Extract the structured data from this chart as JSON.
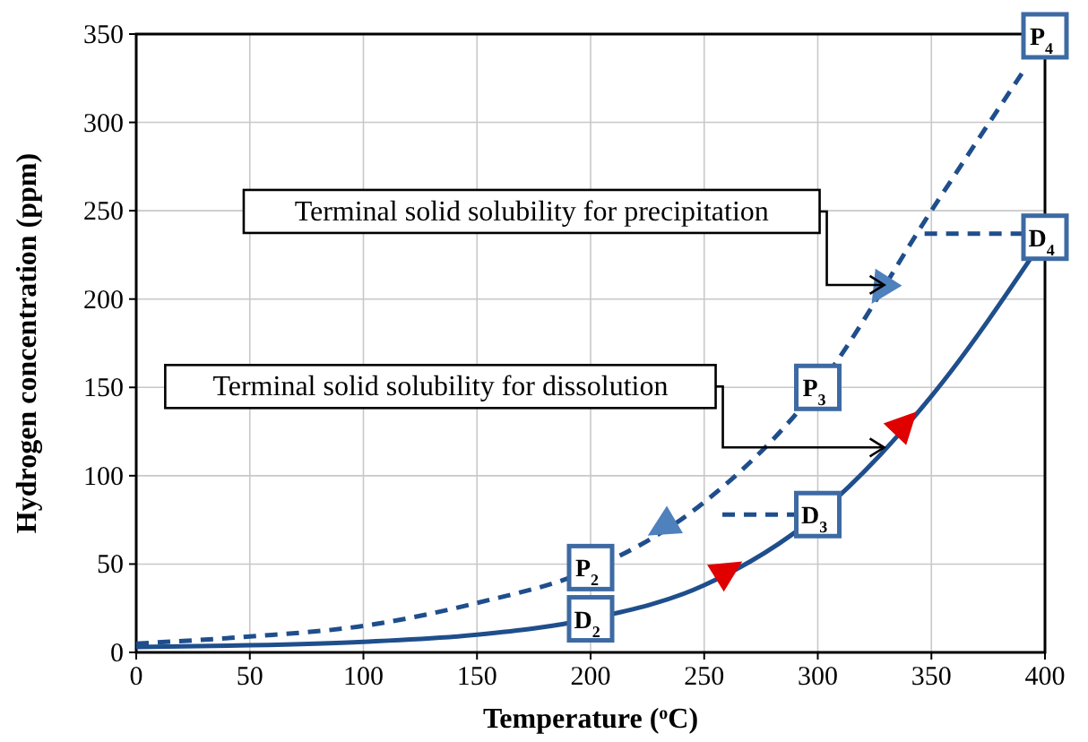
{
  "chart_data": {
    "type": "line",
    "xlabel": "Temperature ($^{o}$C)",
    "ylabel": "Hydrogen concentration (ppm)",
    "x": [
      0,
      50,
      100,
      150,
      200,
      250,
      300,
      350,
      400
    ],
    "series": [
      {
        "color": "#1f4e8c",
        "line_style": "solid",
        "values": [
          3,
          4,
          6,
          10,
          19,
          38,
          78,
          145,
          235
        ]
      },
      {
        "color": "#1f4e8c",
        "line_style": "dashed",
        "x": [
          0,
          50,
          100,
          150,
          200,
          250,
          300,
          350,
          390
        ],
        "values": [
          5,
          9,
          15,
          28,
          47,
          85,
          150,
          250,
          328
        ]
      },
      {
        "color": "#1f4e8c",
        "line_style": "dashed",
        "x": [
          347,
          400
        ],
        "values": [
          237,
          237
        ]
      },
      {
        "color": "#1f4e8c",
        "line_style": "dashed",
        "x": [
          258,
          300
        ],
        "values": [
          78,
          78
        ]
      }
    ],
    "xlim": [
      0,
      400
    ],
    "xticks": [
      0,
      50,
      100,
      150,
      200,
      250,
      300,
      350,
      400
    ],
    "ylim": [
      0,
      350
    ],
    "yticks": [
      0,
      50,
      100,
      150,
      200,
      250,
      300,
      350
    ],
    "grid": true,
    "marker": "none",
    "annotations": [
      "Terminal solid solubility for precipitation",
      "Terminal solid solubility for dissolution",
      {
        "text": "P$_{2}$",
        "x": 200,
        "y": 48
      },
      {
        "text": "P$_{3}$",
        "x": 300,
        "y": 150
      },
      {
        "text": "P$_{4}$",
        "x": 400,
        "y": 349
      },
      {
        "text": "D$_{2}$",
        "x": 200,
        "y": 19
      },
      {
        "text": "D$_{3}$",
        "x": 300,
        "y": 78
      },
      {
        "text": "D$_{4}$",
        "x": 400,
        "y": 235
      }
    ]
  }
}
